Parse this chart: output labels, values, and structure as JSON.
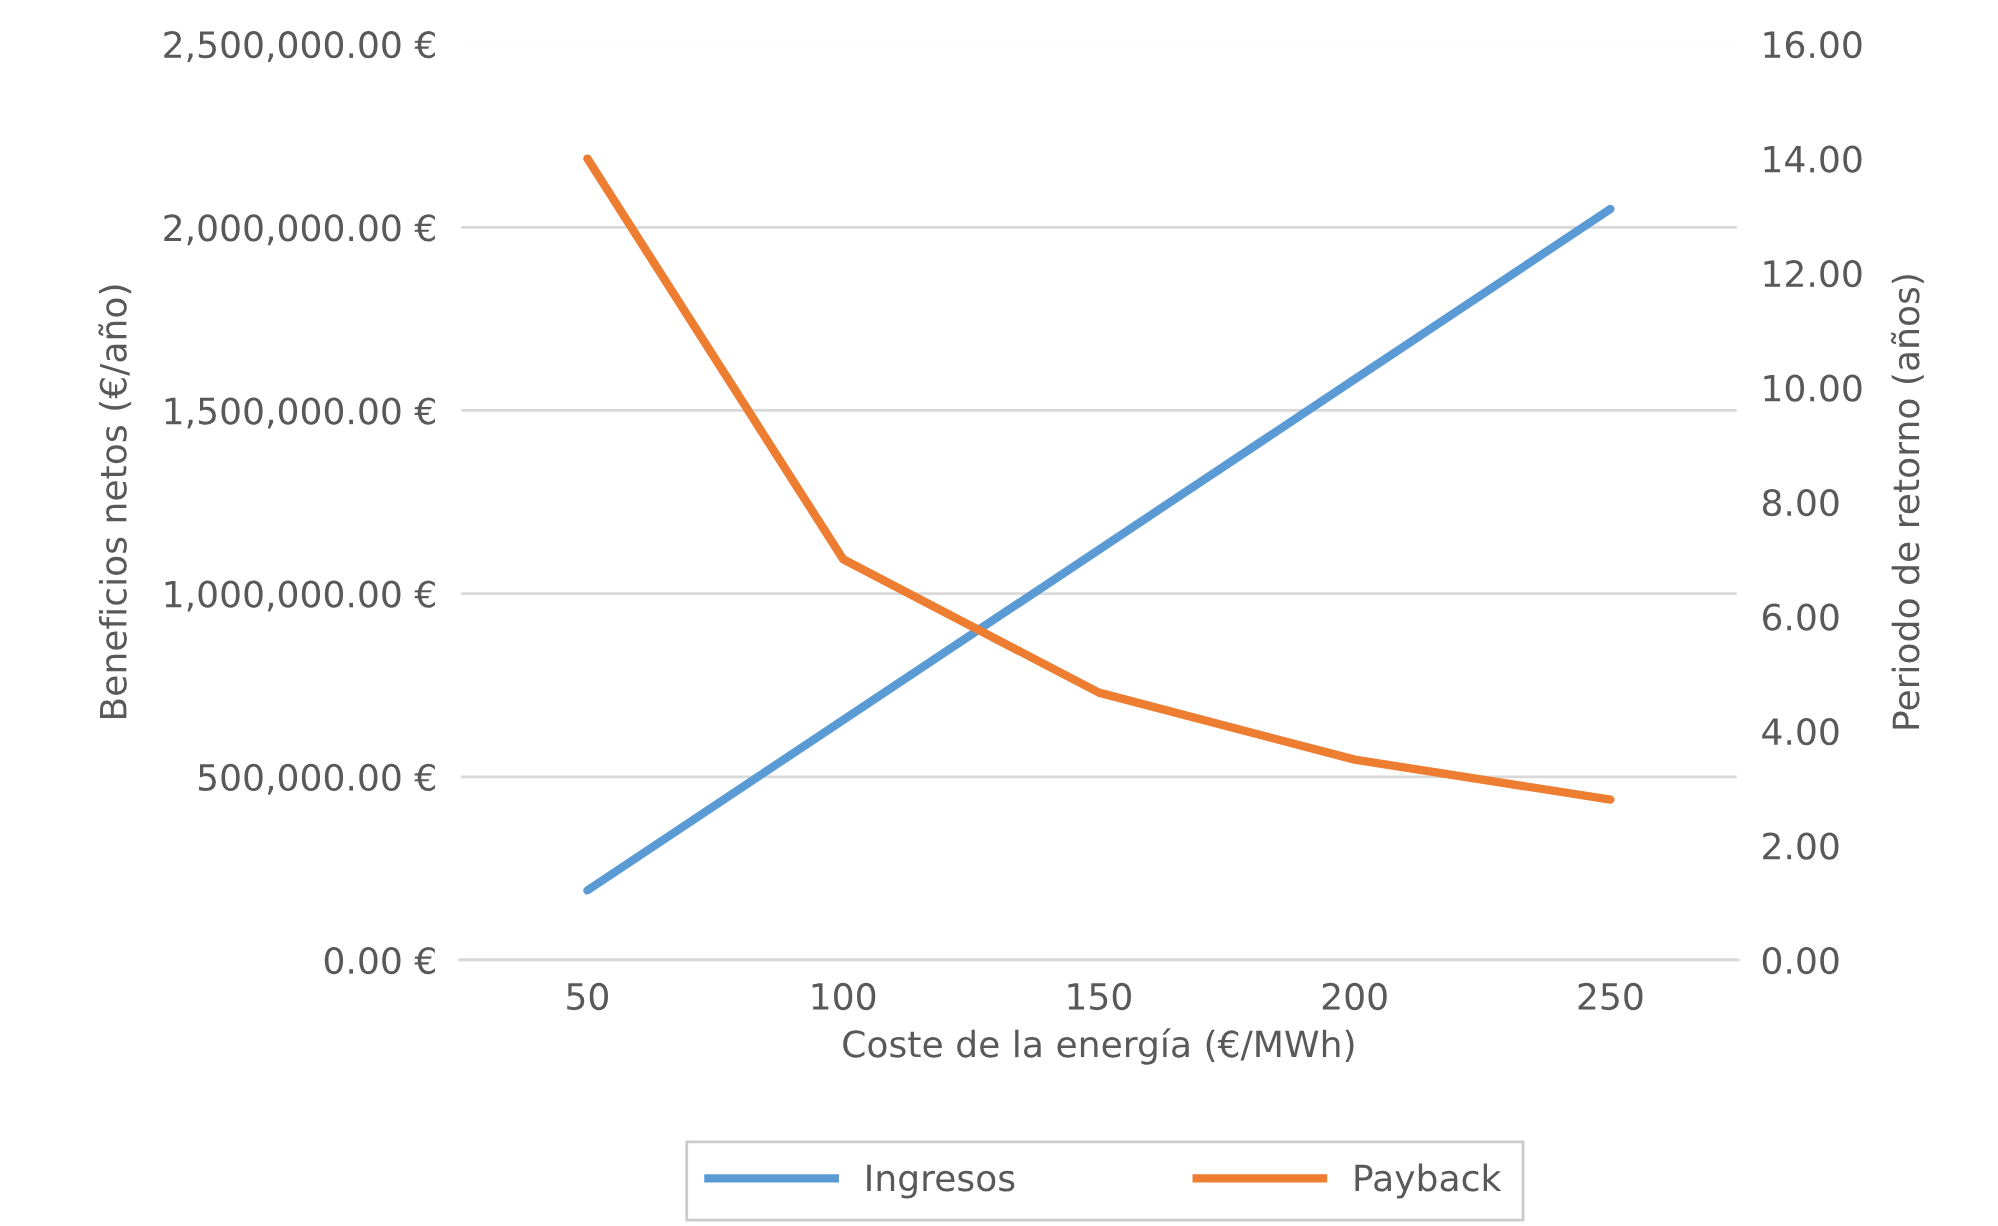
{
  "chart_data": {
    "type": "line",
    "xlabel": "Coste de la energía (€/MWh)",
    "ylabel": "Beneficios netos (€/año)",
    "y2label": "Periodo de retorno (años)",
    "categories": [
      "50",
      "100",
      "150",
      "200",
      "250"
    ],
    "series": [
      {
        "name": "Ingresos",
        "color": "#5b9bd5",
        "values": [
          190000,
          655000,
          1120000,
          1585000,
          2050000
        ]
      },
      {
        "name": "Payback",
        "color": "#ed7d31",
        "axis": "y2",
        "values": [
          14.0,
          7.0,
          4.67,
          3.5,
          2.8
        ]
      }
    ],
    "ylim": [
      0,
      2500000
    ],
    "yticks": [
      {
        "value": 0,
        "label": "0.00 €"
      },
      {
        "value": 500000,
        "label": "500,000.00 €"
      },
      {
        "value": 1000000,
        "label": "1,000,000.00 €"
      },
      {
        "value": 1500000,
        "label": "1,500,000.00 €"
      },
      {
        "value": 2000000,
        "label": "2,000,000.00 €"
      },
      {
        "value": 2500000,
        "label": "2,500,000.00 €"
      }
    ],
    "y2lim": [
      0,
      16
    ],
    "y2ticks": [
      {
        "value": 0,
        "label": "0.00"
      },
      {
        "value": 2,
        "label": "2.00"
      },
      {
        "value": 4,
        "label": "4.00"
      },
      {
        "value": 6,
        "label": "6.00"
      },
      {
        "value": 8,
        "label": "8.00"
      },
      {
        "value": 10,
        "label": "10.00"
      },
      {
        "value": 12,
        "label": "12.00"
      },
      {
        "value": 14,
        "label": "14.00"
      },
      {
        "value": 16,
        "label": "16.00"
      }
    ],
    "grid": "y",
    "legend": "bottom",
    "line_style": "solid",
    "marker": "none"
  }
}
